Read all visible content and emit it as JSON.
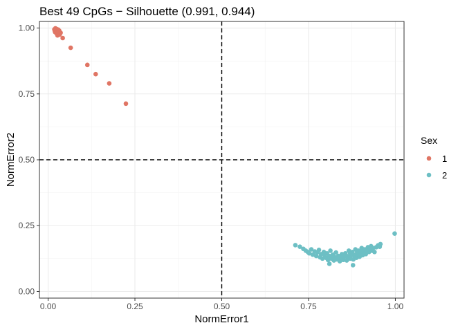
{
  "chart_data": {
    "type": "scatter",
    "title": "Best 49 CpGs − Silhouette (0.991, 0.944)",
    "xlabel": "NormError1",
    "ylabel": "NormError2",
    "xlim": [
      -0.025,
      1.025
    ],
    "ylim": [
      -0.025,
      1.025
    ],
    "x_ticks": [
      0.0,
      0.25,
      0.5,
      0.75,
      1.0
    ],
    "x_tick_labels": [
      "0.00",
      "0.25",
      "0.50",
      "0.75",
      "1.00"
    ],
    "y_ticks": [
      0.0,
      0.25,
      0.5,
      0.75,
      1.0
    ],
    "y_tick_labels": [
      "0.00",
      "0.25",
      "0.50",
      "0.75",
      "1.00"
    ],
    "grid": true,
    "reference_lines": {
      "x": 0.5,
      "y": 0.5,
      "style": "dashed"
    },
    "legend": {
      "title": "Sex",
      "placement": "right"
    },
    "series": [
      {
        "name": "1",
        "color": "#E07564",
        "points": [
          [
            0.018,
            0.995
          ],
          [
            0.02,
            0.985
          ],
          [
            0.022,
            0.992
          ],
          [
            0.024,
            0.98
          ],
          [
            0.026,
            0.988
          ],
          [
            0.028,
            0.976
          ],
          [
            0.03,
            0.983
          ],
          [
            0.021,
            0.999
          ],
          [
            0.025,
            0.996
          ],
          [
            0.032,
            0.99
          ],
          [
            0.034,
            0.978
          ],
          [
            0.019,
            0.99
          ],
          [
            0.027,
            0.972
          ],
          [
            0.023,
            0.982
          ],
          [
            0.029,
            0.994
          ],
          [
            0.031,
            0.986
          ],
          [
            0.036,
            0.982
          ],
          [
            0.033,
            0.975
          ],
          [
            0.042,
            0.962
          ],
          [
            0.065,
            0.925
          ],
          [
            0.113,
            0.86
          ],
          [
            0.137,
            0.825
          ],
          [
            0.176,
            0.79
          ],
          [
            0.224,
            0.713
          ]
        ]
      },
      {
        "name": "2",
        "color": "#6DBFC4",
        "points": [
          [
            0.712,
            0.176
          ],
          [
            0.725,
            0.17
          ],
          [
            0.735,
            0.162
          ],
          [
            0.742,
            0.155
          ],
          [
            0.748,
            0.15
          ],
          [
            0.752,
            0.145
          ],
          [
            0.758,
            0.16
          ],
          [
            0.762,
            0.14
          ],
          [
            0.768,
            0.152
          ],
          [
            0.772,
            0.135
          ],
          [
            0.775,
            0.148
          ],
          [
            0.78,
            0.158
          ],
          [
            0.783,
            0.13
          ],
          [
            0.786,
            0.142
          ],
          [
            0.79,
            0.125
          ],
          [
            0.794,
            0.15
          ],
          [
            0.797,
            0.138
          ],
          [
            0.8,
            0.128
          ],
          [
            0.803,
            0.145
          ],
          [
            0.806,
            0.12
          ],
          [
            0.81,
            0.135
          ],
          [
            0.813,
            0.155
          ],
          [
            0.816,
            0.125
          ],
          [
            0.82,
            0.14
          ],
          [
            0.823,
            0.118
          ],
          [
            0.826,
            0.13
          ],
          [
            0.829,
            0.148
          ],
          [
            0.832,
            0.122
          ],
          [
            0.836,
            0.135
          ],
          [
            0.84,
            0.115
          ],
          [
            0.843,
            0.128
          ],
          [
            0.846,
            0.142
          ],
          [
            0.85,
            0.12
          ],
          [
            0.853,
            0.132
          ],
          [
            0.856,
            0.145
          ],
          [
            0.86,
            0.118
          ],
          [
            0.863,
            0.13
          ],
          [
            0.866,
            0.155
          ],
          [
            0.87,
            0.125
          ],
          [
            0.873,
            0.138
          ],
          [
            0.876,
            0.15
          ],
          [
            0.879,
            0.122
          ],
          [
            0.882,
            0.135
          ],
          [
            0.885,
            0.16
          ],
          [
            0.888,
            0.128
          ],
          [
            0.891,
            0.142
          ],
          [
            0.894,
            0.155
          ],
          [
            0.897,
            0.132
          ],
          [
            0.9,
            0.145
          ],
          [
            0.903,
            0.165
          ],
          [
            0.906,
            0.138
          ],
          [
            0.909,
            0.15
          ],
          [
            0.912,
            0.16
          ],
          [
            0.915,
            0.142
          ],
          [
            0.918,
            0.155
          ],
          [
            0.921,
            0.168
          ],
          [
            0.924,
            0.15
          ],
          [
            0.927,
            0.162
          ],
          [
            0.93,
            0.172
          ],
          [
            0.933,
            0.155
          ],
          [
            0.936,
            0.165
          ],
          [
            0.94,
            0.15
          ],
          [
            0.945,
            0.168
          ],
          [
            0.95,
            0.175
          ],
          [
            0.955,
            0.17
          ],
          [
            0.957,
            0.18
          ],
          [
            0.878,
            0.1
          ],
          [
            0.81,
            0.105
          ],
          [
            0.85,
            0.14
          ],
          [
            0.87,
            0.145
          ],
          [
            0.89,
            0.15
          ],
          [
            0.86,
            0.135
          ],
          [
            0.88,
            0.14
          ],
          [
            0.9,
            0.152
          ],
          [
            0.84,
            0.13
          ],
          [
            0.998,
            0.22
          ]
        ]
      }
    ]
  }
}
